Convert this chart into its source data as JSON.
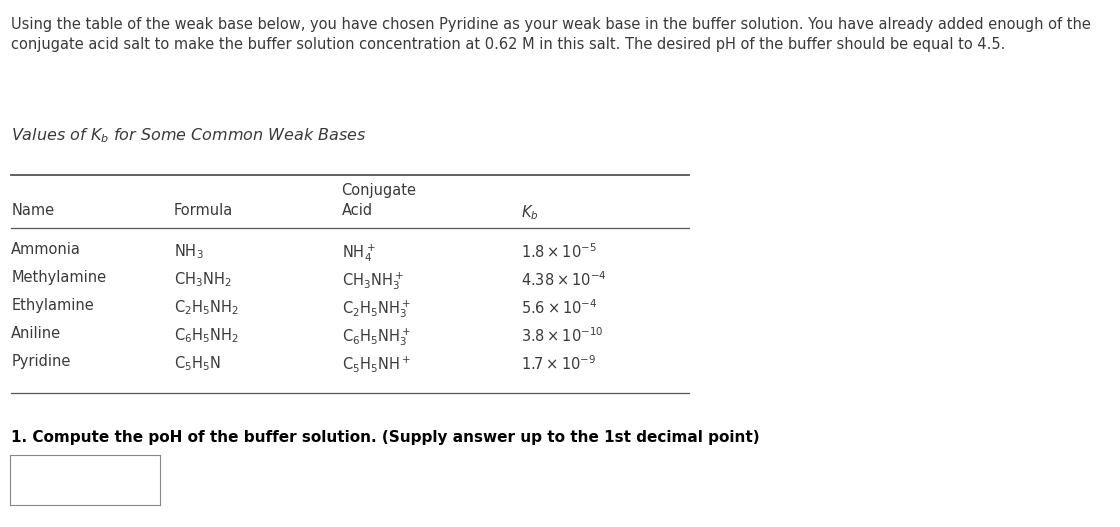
{
  "intro_line1": "Using the table of the weak base below, you have chosen Pyridine as your weak base in the buffer solution. You have already added enough of the",
  "intro_line2": "conjugate acid salt to make the buffer solution concentration at 0.62 M in this salt. The desired pH of the buffer should be equal to 4.5.",
  "table_title": "Values of $K_b$ for Some Common Weak Bases",
  "name_col": [
    "Ammonia",
    "Methylamine",
    "Ethylamine",
    "Aniline",
    "Pyridine"
  ],
  "formula_col": [
    "$\\mathrm{NH_3}$",
    "$\\mathrm{CH_3NH_2}$",
    "$\\mathrm{C_2H_5NH_2}$",
    "$\\mathrm{C_6H_5NH_2}$",
    "$\\mathrm{C_5H_5N}$"
  ],
  "conj_acid_col": [
    "$\\mathrm{NH_4^+}$",
    "$\\mathrm{CH_3NH_3^+}$",
    "$\\mathrm{C_2H_5NH_3^+}$",
    "$\\mathrm{C_6H_5NH_3^+}$",
    "$\\mathrm{C_5H_5NH^+}$"
  ],
  "kb_col": [
    "$1.8 \\times 10^{-5}$",
    "$4.38 \\times 10^{-4}$",
    "$5.6 \\times 10^{-4}$",
    "$3.8 \\times 10^{-10}$",
    "$1.7 \\times 10^{-9}$"
  ],
  "question": "1. Compute the poH of the buffer solution. (Supply answer up to the 1st decimal point)",
  "text_color": "#3a3a3a",
  "bg_color": "#ffffff",
  "font_size": 10.5,
  "title_font_size": 11.5
}
